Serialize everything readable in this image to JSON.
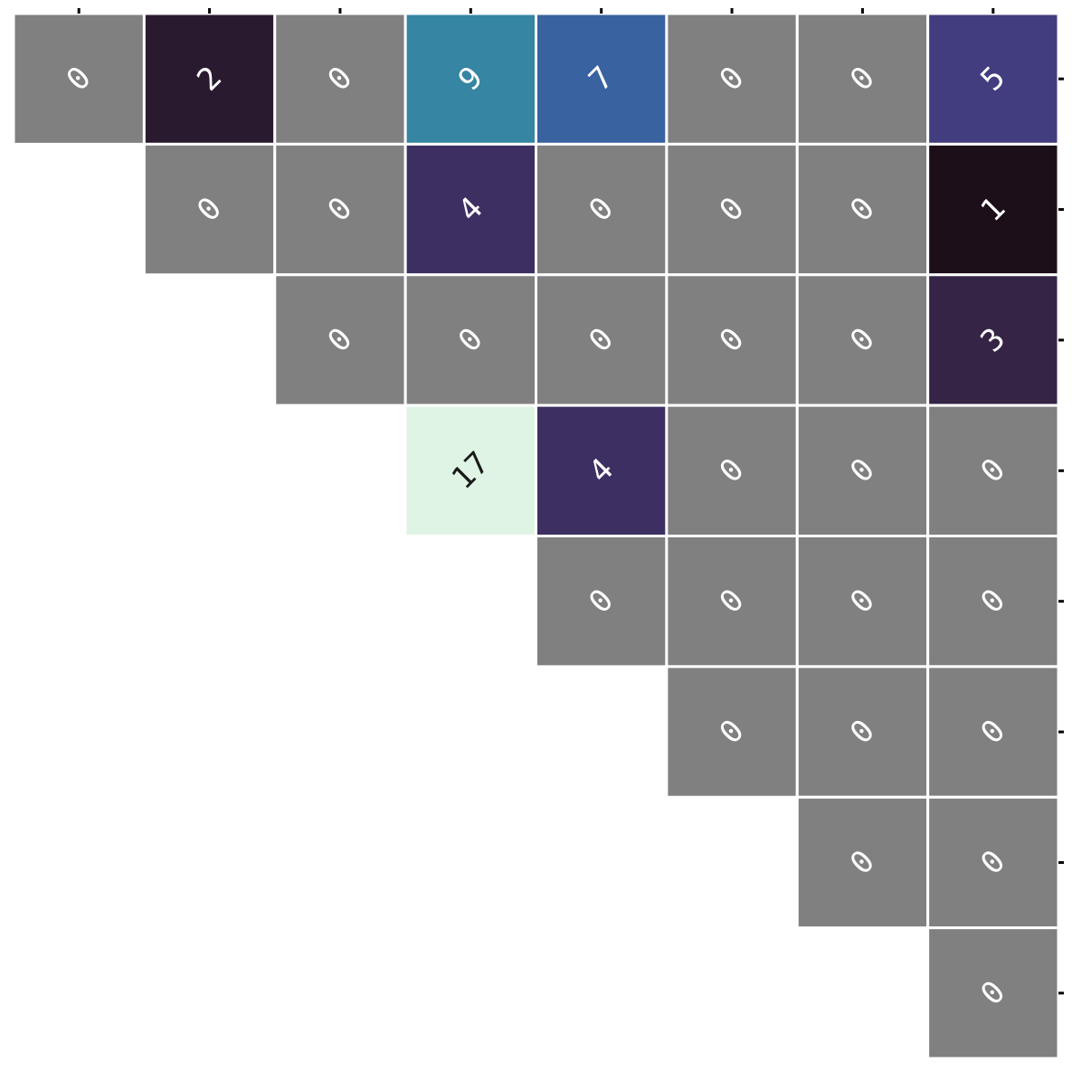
{
  "chart_data": {
    "type": "heatmap",
    "title": "",
    "xlabel": "",
    "ylabel": "",
    "grid": false,
    "legend": "none",
    "x_ticks": 8,
    "y_ticks": 8,
    "rows": [
      [
        0,
        2,
        0,
        9,
        7,
        0,
        0,
        5
      ],
      [
        null,
        0,
        0,
        4,
        0,
        0,
        0,
        1
      ],
      [
        null,
        null,
        0,
        0,
        0,
        0,
        0,
        3
      ],
      [
        null,
        null,
        null,
        17,
        4,
        0,
        0,
        0
      ],
      [
        null,
        null,
        null,
        null,
        0,
        0,
        0,
        0
      ],
      [
        null,
        null,
        null,
        null,
        null,
        0,
        0,
        0
      ],
      [
        null,
        null,
        null,
        null,
        null,
        null,
        0,
        0
      ],
      [
        null,
        null,
        null,
        null,
        null,
        null,
        null,
        0
      ]
    ],
    "colors": {
      "zero_cell": "#808080",
      "cell_border": "#ffffff",
      "tick": "#000000",
      "scale": {
        "1": "#1c0f1a",
        "2": "#2a1a30",
        "3": "#352445",
        "4": "#3e2f63",
        "5": "#423d7e",
        "7": "#3962a0",
        "9": "#3585a3",
        "17": "#dff4e5"
      },
      "label_light": "#ffffff",
      "label_dark": "#1a1a1a"
    }
  }
}
